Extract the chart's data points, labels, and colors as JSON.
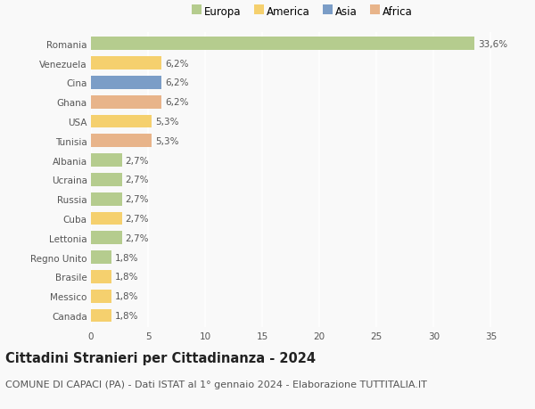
{
  "countries": [
    "Romania",
    "Venezuela",
    "Cina",
    "Ghana",
    "USA",
    "Tunisia",
    "Albania",
    "Ucraina",
    "Russia",
    "Cuba",
    "Lettonia",
    "Regno Unito",
    "Brasile",
    "Messico",
    "Canada"
  ],
  "values": [
    33.6,
    6.2,
    6.2,
    6.2,
    5.3,
    5.3,
    2.7,
    2.7,
    2.7,
    2.7,
    2.7,
    1.8,
    1.8,
    1.8,
    1.8
  ],
  "labels": [
    "33,6%",
    "6,2%",
    "6,2%",
    "6,2%",
    "5,3%",
    "5,3%",
    "2,7%",
    "2,7%",
    "2,7%",
    "2,7%",
    "2,7%",
    "1,8%",
    "1,8%",
    "1,8%",
    "1,8%"
  ],
  "continents": [
    "Europa",
    "America",
    "Asia",
    "Africa",
    "America",
    "Africa",
    "Europa",
    "Europa",
    "Europa",
    "America",
    "Europa",
    "Europa",
    "America",
    "America",
    "America"
  ],
  "colors": {
    "Europa": "#b5cc8e",
    "America": "#f5d06e",
    "Asia": "#7b9dc7",
    "Africa": "#e8b48a"
  },
  "legend_order": [
    "Europa",
    "America",
    "Asia",
    "Africa"
  ],
  "title": "Cittadini Stranieri per Cittadinanza - 2024",
  "subtitle": "COMUNE DI CAPACI (PA) - Dati ISTAT al 1° gennaio 2024 - Elaborazione TUTTITALIA.IT",
  "xlim": [
    0,
    37
  ],
  "xticks": [
    0,
    5,
    10,
    15,
    20,
    25,
    30,
    35
  ],
  "background_color": "#f9f9f9",
  "grid_color": "#ffffff",
  "bar_height": 0.68,
  "title_fontsize": 10.5,
  "subtitle_fontsize": 8,
  "label_fontsize": 7.5,
  "tick_fontsize": 7.5,
  "legend_fontsize": 8.5
}
